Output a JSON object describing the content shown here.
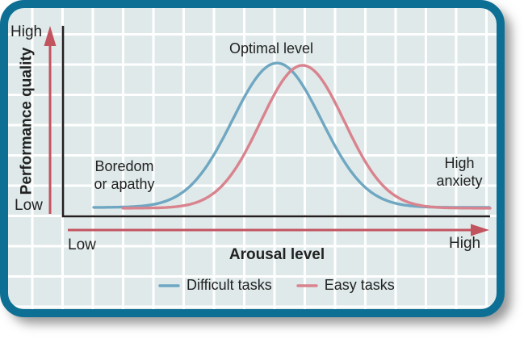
{
  "figure": {
    "border_color": "#0e6f94",
    "card_background": "#dfe9e9",
    "grid_color": "#ffffff",
    "axis_color": "#231f20",
    "arrow_color": "#c25460",
    "text_color": "#222222"
  },
  "y_axis": {
    "label": "Performance quality",
    "top_tick": "High",
    "bottom_tick": "Low"
  },
  "x_axis": {
    "label": "Arousal level",
    "left_tick": "Low",
    "right_tick": "High"
  },
  "annotations": {
    "optimal_level": "Optimal level",
    "boredom_line1": "Boredom",
    "boredom_line2": "or apathy",
    "anxiety_line1": "High",
    "anxiety_line2": "anxiety"
  },
  "chart_data": {
    "type": "line",
    "title": "",
    "xlabel": "Arousal level",
    "ylabel": "Performance quality",
    "x_axis_qualitative_range": [
      "Low",
      "High"
    ],
    "y_axis_qualitative_range": [
      "Low",
      "High"
    ],
    "grid": true,
    "legend_position": "bottom-center",
    "axes_style": "arrows-low-to-high",
    "series": [
      {
        "name": "Difficult tasks",
        "color": "#6fa7c2",
        "curve": "gaussian",
        "mu": 0.501,
        "sigma": 0.104,
        "base": 0.047,
        "peak": 0.808,
        "x_start": 0.072,
        "x_end": 0.998,
        "points": [
          [
            0.07,
            0.05
          ],
          [
            0.2,
            0.06
          ],
          [
            0.3,
            0.16
          ],
          [
            0.4,
            0.52
          ],
          [
            0.5,
            0.81
          ],
          [
            0.6,
            0.53
          ],
          [
            0.7,
            0.17
          ],
          [
            0.8,
            0.06
          ],
          [
            0.9,
            0.05
          ],
          [
            1.0,
            0.05
          ]
        ]
      },
      {
        "name": "Easy tasks",
        "color": "#d9838e",
        "curve": "gaussian",
        "mu": 0.561,
        "sigma": 0.098,
        "base": 0.043,
        "peak": 0.796,
        "x_start": 0.14,
        "x_end": 1.0,
        "points": [
          [
            0.14,
            0.04
          ],
          [
            0.25,
            0.05
          ],
          [
            0.35,
            0.1
          ],
          [
            0.45,
            0.4
          ],
          [
            0.56,
            0.8
          ],
          [
            0.65,
            0.54
          ],
          [
            0.75,
            0.16
          ],
          [
            0.85,
            0.05
          ],
          [
            0.95,
            0.04
          ],
          [
            1.0,
            0.04
          ]
        ]
      }
    ],
    "annotations": [
      {
        "text": "Optimal level",
        "x": 0.49,
        "y": 0.95
      },
      {
        "text": "Boredom or apathy",
        "x": 0.14,
        "y": 0.22
      },
      {
        "text": "High anxiety",
        "x": 0.93,
        "y": 0.24
      }
    ]
  }
}
